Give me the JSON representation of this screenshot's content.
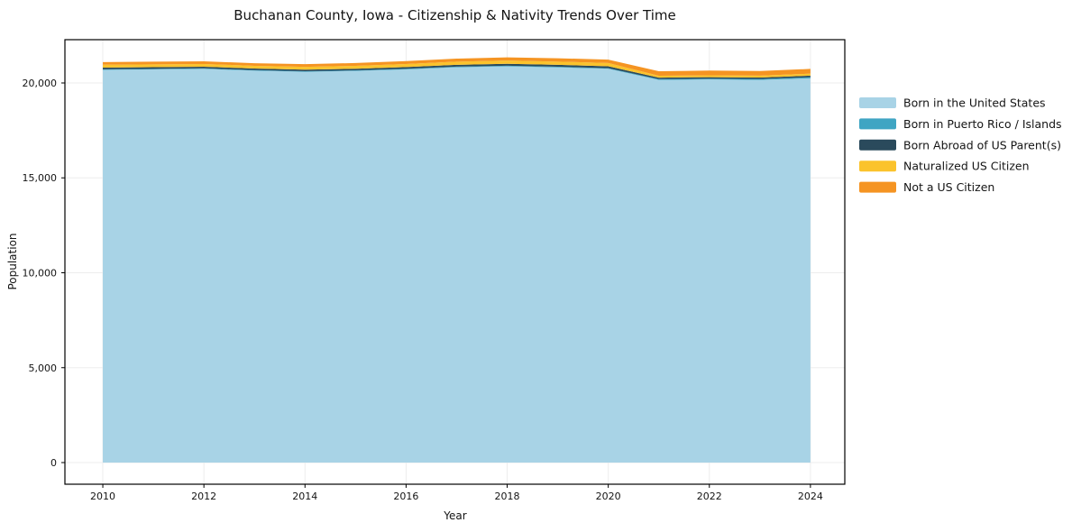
{
  "figure": {
    "background_color": "#ffffff",
    "spine_color": "#000000",
    "text_color": "#141414"
  },
  "chart_data": {
    "type": "area",
    "stacked": true,
    "title": "Buchanan County, Iowa - Citizenship & Nativity Trends Over Time",
    "xlabel": "Year",
    "ylabel": "Population",
    "x": [
      2010,
      2011,
      2012,
      2013,
      2014,
      2015,
      2016,
      2017,
      2018,
      2019,
      2020,
      2021,
      2022,
      2023,
      2024
    ],
    "series": [
      {
        "name": "Born in the United States",
        "color": "#a8d3e6",
        "values": [
          20690,
          20710,
          20740,
          20645,
          20585,
          20635,
          20715,
          20825,
          20875,
          20820,
          20745,
          20160,
          20185,
          20160,
          20245
        ]
      },
      {
        "name": "Born in Puerto Rico / Islands",
        "color": "#3fa5c3",
        "values": [
          30,
          30,
          30,
          30,
          30,
          30,
          35,
          35,
          35,
          35,
          35,
          40,
          40,
          45,
          55
        ]
      },
      {
        "name": "Born Abroad of US Parent(s)",
        "color": "#2a4a5c",
        "values": [
          90,
          90,
          85,
          85,
          85,
          85,
          90,
          95,
          100,
          100,
          100,
          80,
          80,
          80,
          85
        ]
      },
      {
        "name": "Naturalized US Citizen",
        "color": "#fbc32c",
        "values": [
          150,
          150,
          145,
          145,
          150,
          155,
          160,
          165,
          170,
          170,
          170,
          100,
          100,
          100,
          105
        ]
      },
      {
        "name": "Not a US Citizen",
        "color": "#f59422",
        "values": [
          140,
          140,
          140,
          135,
          140,
          145,
          150,
          160,
          170,
          175,
          180,
          240,
          245,
          245,
          250
        ]
      }
    ],
    "xticks": [
      2010,
      2012,
      2014,
      2016,
      2018,
      2020,
      2022,
      2024
    ],
    "xtick_labels": [
      "2010",
      "2012",
      "2014",
      "2016",
      "2018",
      "2020",
      "2022",
      "2024"
    ],
    "yticks": [
      0,
      5000,
      10000,
      15000,
      20000
    ],
    "ytick_labels": [
      "0",
      "5,000",
      "10,000",
      "15,000",
      "20,000"
    ],
    "xlim": [
      2009.25,
      2024.68
    ],
    "ylim": [
      -1140,
      22280
    ],
    "grid": true,
    "grid_color": "#ededed",
    "legend_position": "right"
  }
}
